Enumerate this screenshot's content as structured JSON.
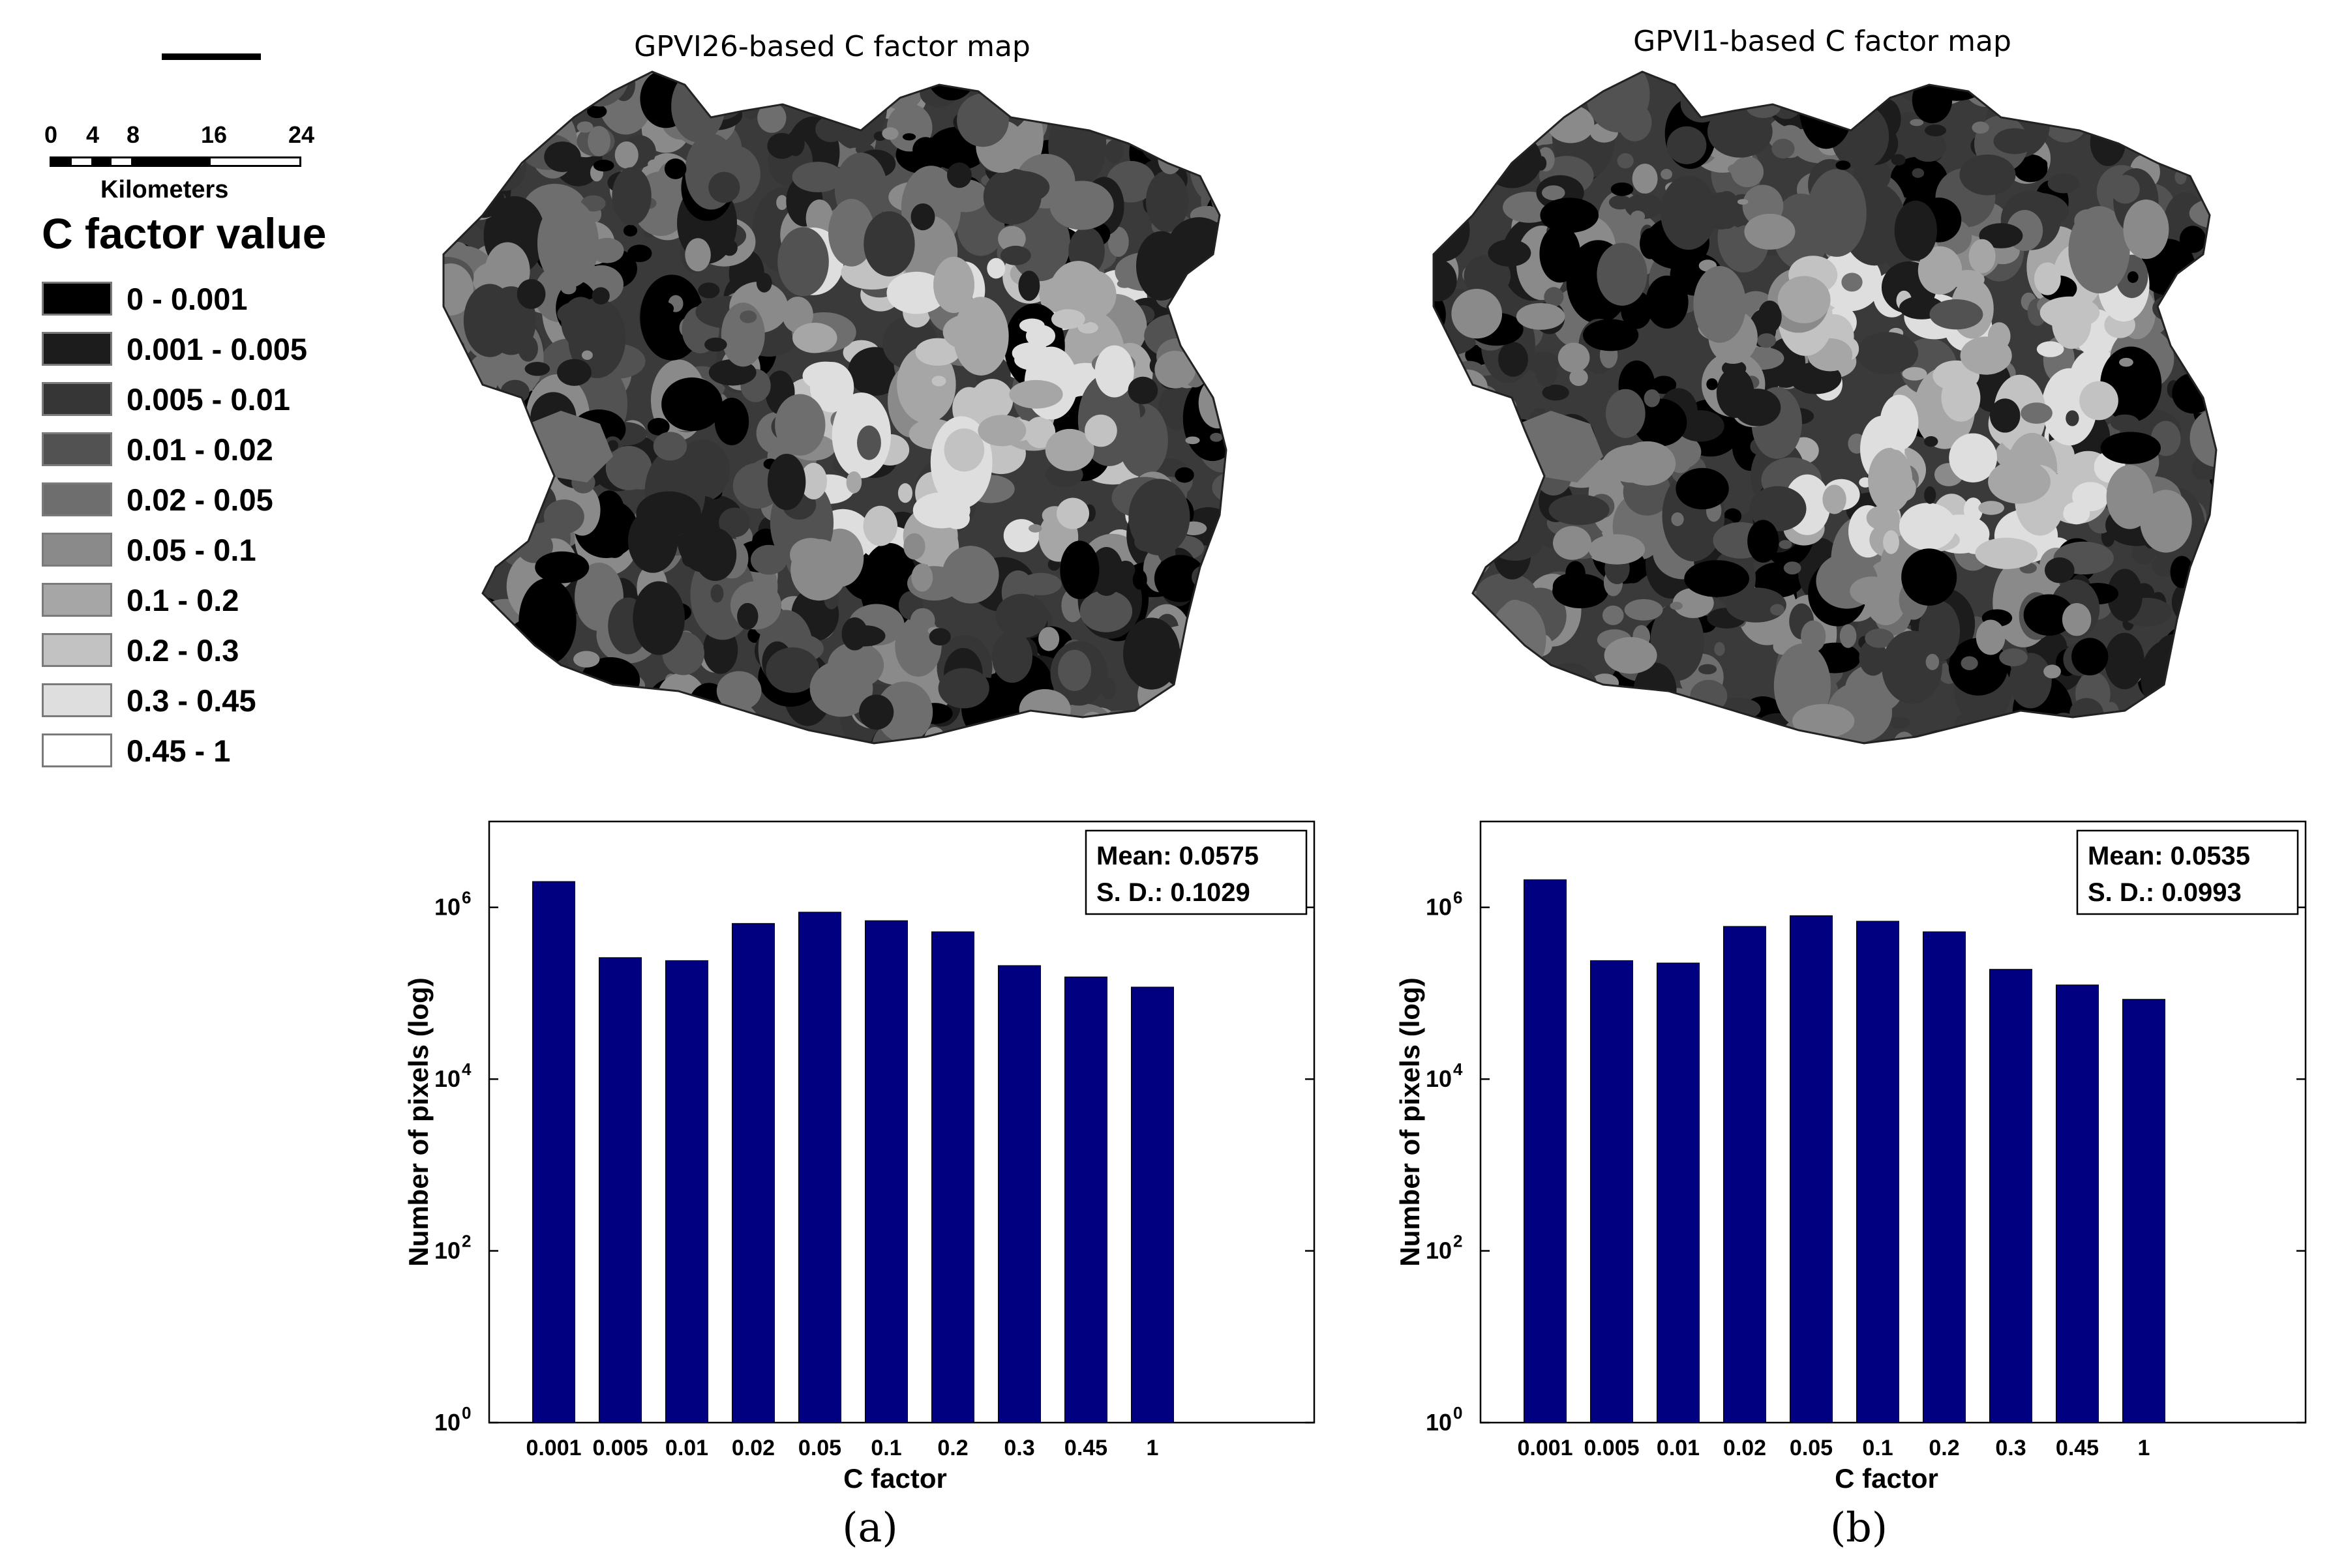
{
  "scale_bar": {
    "tick_labels": [
      "0",
      "4",
      "8",
      "16",
      "24"
    ],
    "unit": "Kilometers"
  },
  "legend": {
    "title": "C factor value",
    "items": [
      {
        "label": "0 - 0.001",
        "color": "#000000"
      },
      {
        "label": "0.001 - 0.005",
        "color": "#1c1c1c"
      },
      {
        "label": "0.005 - 0.01",
        "color": "#363636"
      },
      {
        "label": "0.01 - 0.02",
        "color": "#525252"
      },
      {
        "label": "0.02 - 0.05",
        "color": "#6e6e6e"
      },
      {
        "label": "0.05 - 0.1",
        "color": "#8a8a8a"
      },
      {
        "label": "0.1 - 0.2",
        "color": "#a6a6a6"
      },
      {
        "label": "0.2 - 0.3",
        "color": "#c2c2c2"
      },
      {
        "label": "0.3 - 0.45",
        "color": "#dedede"
      },
      {
        "label": "0.45 - 1",
        "color": "#ffffff"
      }
    ]
  },
  "maps": [
    {
      "title": "GPVI26-based C factor map"
    },
    {
      "title": "GPVI1-based C factor map"
    }
  ],
  "captions": [
    "(a)",
    "(b)"
  ],
  "chart_data": [
    {
      "type": "bar",
      "panel": "(a)",
      "categories": [
        "0.001",
        "0.005",
        "0.01",
        "0.02",
        "0.05",
        "0.1",
        "0.2",
        "0.3",
        "0.45",
        "1"
      ],
      "values": [
        2000000,
        260000,
        240000,
        650000,
        880000,
        700000,
        520000,
        210000,
        155000,
        118000
      ],
      "xlabel": "C factor",
      "ylabel": "Number of pixels (log)",
      "y_scale": "log",
      "ylim": [
        1,
        10000000
      ],
      "y_ticks": [
        1,
        100,
        10000,
        1000000
      ],
      "bar_color": "#000080",
      "grid": false,
      "stats": {
        "mean": "Mean: 0.0575",
        "sd": "S. D.: 0.1029"
      },
      "stats_position": "top-right"
    },
    {
      "type": "bar",
      "panel": "(b)",
      "categories": [
        "0.001",
        "0.005",
        "0.01",
        "0.02",
        "0.05",
        "0.1",
        "0.2",
        "0.3",
        "0.45",
        "1"
      ],
      "values": [
        2100000,
        240000,
        225000,
        600000,
        800000,
        690000,
        520000,
        190000,
        125000,
        85000
      ],
      "xlabel": "C factor",
      "ylabel": "Number of pixels (log)",
      "y_scale": "log",
      "ylim": [
        1,
        10000000
      ],
      "y_ticks": [
        1,
        100,
        10000,
        1000000
      ],
      "bar_color": "#000080",
      "grid": false,
      "stats": {
        "mean": "Mean: 0.0535",
        "sd": "S. D.: 0.0993"
      },
      "stats_position": "top-right"
    }
  ]
}
